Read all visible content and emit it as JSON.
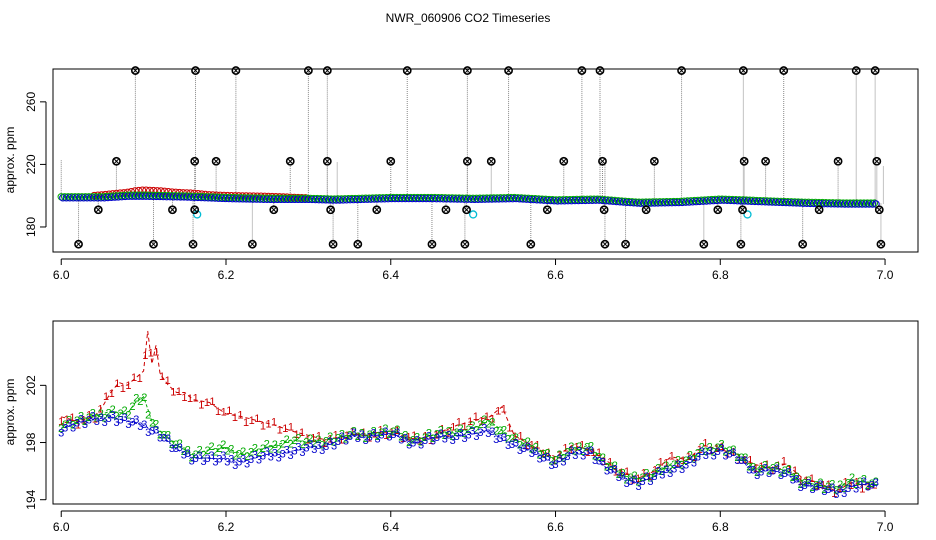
{
  "title": "NWR_060906  CO2 Timeseries",
  "colors": {
    "background": "#ffffff",
    "frame": "#000000",
    "series1": "#cc0000",
    "series2": "#00aa00",
    "series3": "#0000cc",
    "outlier": "#000000",
    "flag": "#00bcd4",
    "spike": "#888888"
  },
  "chart_data": [
    {
      "type": "scatter",
      "panel": "top",
      "xlabel": "",
      "ylabel": "approx. ppm",
      "xlim": [
        5.99,
        7.04
      ],
      "ylim": [
        164,
        281
      ],
      "xticks": [
        "6.0",
        "6.2",
        "6.4",
        "6.6",
        "6.8",
        "7.0"
      ],
      "xtick_values": [
        6.0,
        6.2,
        6.4,
        6.6,
        6.8,
        7.0
      ],
      "yticks": [
        "180",
        "220",
        "260"
      ],
      "ytick_values": [
        180,
        220,
        260
      ],
      "baseline": [
        [
          6.0,
          199
        ],
        [
          6.05,
          199
        ],
        [
          6.08,
          200
        ],
        [
          6.1,
          200
        ],
        [
          6.15,
          199.5
        ],
        [
          6.2,
          198.5
        ],
        [
          6.25,
          198
        ],
        [
          6.3,
          198
        ],
        [
          6.33,
          197.5
        ],
        [
          6.4,
          198.5
        ],
        [
          6.45,
          198.5
        ],
        [
          6.5,
          198
        ],
        [
          6.55,
          198.5
        ],
        [
          6.6,
          197
        ],
        [
          6.65,
          197.5
        ],
        [
          6.7,
          195.5
        ],
        [
          6.75,
          196
        ],
        [
          6.8,
          197.5
        ],
        [
          6.85,
          196.5
        ],
        [
          6.9,
          195.5
        ],
        [
          6.95,
          195
        ],
        [
          6.99,
          195
        ]
      ],
      "red_bump": [
        [
          6.04,
          200
        ],
        [
          6.06,
          201
        ],
        [
          6.08,
          202
        ],
        [
          6.09,
          203
        ],
        [
          6.1,
          203.5
        ],
        [
          6.12,
          203
        ],
        [
          6.14,
          202
        ],
        [
          6.16,
          201.5
        ],
        [
          6.18,
          200.5
        ],
        [
          6.2,
          200
        ],
        [
          6.25,
          199.5
        ],
        [
          6.3,
          198.5
        ]
      ],
      "outliers_high": [
        6.09,
        6.163,
        6.212,
        6.3,
        6.323,
        6.42,
        6.493,
        6.543,
        6.632,
        6.654,
        6.753,
        6.828,
        6.877,
        6.965,
        6.988
      ],
      "outliers_mid_upper": [
        6.067,
        6.162,
        6.188,
        6.278,
        6.323,
        6.4,
        6.493,
        6.522,
        6.61,
        6.657,
        6.72,
        6.829,
        6.855,
        6.943,
        6.99
      ],
      "outliers_mid_lower": [
        6.045,
        6.135,
        6.162,
        6.258,
        6.327,
        6.383,
        6.467,
        6.492,
        6.59,
        6.659,
        6.71,
        6.797,
        6.827,
        6.92,
        6.993
      ],
      "outliers_low": [
        6.021,
        6.112,
        6.16,
        6.232,
        6.33,
        6.36,
        6.45,
        6.49,
        6.57,
        6.66,
        6.685,
        6.78,
        6.825,
        6.9,
        6.995
      ],
      "outlier_values": {
        "high": 280,
        "mid_upper": 222,
        "mid_lower": 191,
        "low": 169
      },
      "flags": [
        [
          6.165,
          188
        ],
        [
          6.5,
          188
        ],
        [
          6.833,
          188
        ]
      ]
    },
    {
      "type": "line",
      "panel": "bottom",
      "xlabel": "",
      "ylabel": "approx. ppm",
      "xlim": [
        5.99,
        7.04
      ],
      "ylim": [
        193.7,
        206.5
      ],
      "xticks": [
        "6.0",
        "6.2",
        "6.4",
        "6.6",
        "6.8",
        "7.0"
      ],
      "xtick_values": [
        6.0,
        6.2,
        6.4,
        6.6,
        6.8,
        7.0
      ],
      "yticks": [
        "194",
        "198",
        "202"
      ],
      "ytick_values": [
        194,
        198,
        202
      ],
      "series": [
        {
          "name": "1",
          "points": [
            [
              6.0,
              199.8
            ],
            [
              6.02,
              199.5
            ],
            [
              6.04,
              199.8
            ],
            [
              6.05,
              200.5
            ],
            [
              6.06,
              201.5
            ],
            [
              6.07,
              202.2
            ],
            [
              6.08,
              202.0
            ],
            [
              6.09,
              202.5
            ],
            [
              6.1,
              203.0
            ],
            [
              6.105,
              205.8
            ],
            [
              6.11,
              203.5
            ],
            [
              6.115,
              204.8
            ],
            [
              6.12,
              202.8
            ],
            [
              6.13,
              202.0
            ],
            [
              6.14,
              201.5
            ],
            [
              6.15,
              201.5
            ],
            [
              6.16,
              201.0
            ],
            [
              6.18,
              200.8
            ],
            [
              6.2,
              200.0
            ],
            [
              6.22,
              199.8
            ],
            [
              6.24,
              199.5
            ],
            [
              6.26,
              199.2
            ],
            [
              6.28,
              198.8
            ],
            [
              6.3,
              198.5
            ],
            [
              6.32,
              198.2
            ],
            [
              6.35,
              198.5
            ],
            [
              6.4,
              198.8
            ],
            [
              6.43,
              198.2
            ],
            [
              6.45,
              198.5
            ],
            [
              6.48,
              199.2
            ],
            [
              6.5,
              199.5
            ],
            [
              6.52,
              199.8
            ],
            [
              6.535,
              200.5
            ],
            [
              6.55,
              198.5
            ],
            [
              6.58,
              197.5
            ],
            [
              6.6,
              197.0
            ],
            [
              6.62,
              197.8
            ],
            [
              6.64,
              197.5
            ],
            [
              6.66,
              196.8
            ],
            [
              6.68,
              196.0
            ],
            [
              6.7,
              195.5
            ],
            [
              6.72,
              196.0
            ],
            [
              6.74,
              197.0
            ],
            [
              6.76,
              196.8
            ],
            [
              6.78,
              197.8
            ],
            [
              6.8,
              197.5
            ],
            [
              6.82,
              197.2
            ],
            [
              6.84,
              196.5
            ],
            [
              6.86,
              196.2
            ],
            [
              6.88,
              196.5
            ],
            [
              6.9,
              195.5
            ],
            [
              6.92,
              195.2
            ],
            [
              6.94,
              194.6
            ],
            [
              6.96,
              195.2
            ],
            [
              6.98,
              195.0
            ],
            [
              6.99,
              194.8
            ]
          ]
        },
        {
          "name": "2",
          "points": [
            [
              6.0,
              199.3
            ],
            [
              6.02,
              199.6
            ],
            [
              6.04,
              199.8
            ],
            [
              6.06,
              200.2
            ],
            [
              6.08,
              200.0
            ],
            [
              6.09,
              200.8
            ],
            [
              6.1,
              201.2
            ],
            [
              6.11,
              199.5
            ],
            [
              6.12,
              198.8
            ],
            [
              6.14,
              197.8
            ],
            [
              6.16,
              197.2
            ],
            [
              6.18,
              197.5
            ],
            [
              6.2,
              197.6
            ],
            [
              6.22,
              197.2
            ],
            [
              6.24,
              197.5
            ],
            [
              6.26,
              197.8
            ],
            [
              6.28,
              198.2
            ],
            [
              6.3,
              198.0
            ],
            [
              6.32,
              198.2
            ],
            [
              6.35,
              198.5
            ],
            [
              6.4,
              198.8
            ],
            [
              6.43,
              198.2
            ],
            [
              6.45,
              198.5
            ],
            [
              6.48,
              198.8
            ],
            [
              6.5,
              199.0
            ],
            [
              6.52,
              199.5
            ],
            [
              6.55,
              198.2
            ],
            [
              6.58,
              197.5
            ],
            [
              6.6,
              196.8
            ],
            [
              6.62,
              197.5
            ],
            [
              6.64,
              197.8
            ],
            [
              6.66,
              196.6
            ],
            [
              6.68,
              195.8
            ],
            [
              6.7,
              195.5
            ],
            [
              6.72,
              195.8
            ],
            [
              6.74,
              196.5
            ],
            [
              6.76,
              196.8
            ],
            [
              6.78,
              197.5
            ],
            [
              6.8,
              197.8
            ],
            [
              6.82,
              197.2
            ],
            [
              6.84,
              196.2
            ],
            [
              6.86,
              196.3
            ],
            [
              6.88,
              196.0
            ],
            [
              6.9,
              195.3
            ],
            [
              6.92,
              195.0
            ],
            [
              6.94,
              194.8
            ],
            [
              6.96,
              195.4
            ],
            [
              6.98,
              195.2
            ],
            [
              6.99,
              195.0
            ]
          ]
        },
        {
          "name": "3",
          "points": [
            [
              6.0,
              199.0
            ],
            [
              6.02,
              199.4
            ],
            [
              6.04,
              199.6
            ],
            [
              6.06,
              199.8
            ],
            [
              6.08,
              199.5
            ],
            [
              6.1,
              199.2
            ],
            [
              6.12,
              198.6
            ],
            [
              6.14,
              197.5
            ],
            [
              6.16,
              197.0
            ],
            [
              6.18,
              196.9
            ],
            [
              6.2,
              196.8
            ],
            [
              6.22,
              196.7
            ],
            [
              6.24,
              197.0
            ],
            [
              6.26,
              197.2
            ],
            [
              6.28,
              197.4
            ],
            [
              6.3,
              197.6
            ],
            [
              6.32,
              197.8
            ],
            [
              6.35,
              198.4
            ],
            [
              6.4,
              198.6
            ],
            [
              6.43,
              198.0
            ],
            [
              6.45,
              198.3
            ],
            [
              6.48,
              198.5
            ],
            [
              6.5,
              198.6
            ],
            [
              6.52,
              198.8
            ],
            [
              6.55,
              197.8
            ],
            [
              6.58,
              197.2
            ],
            [
              6.6,
              196.5
            ],
            [
              6.62,
              197.2
            ],
            [
              6.64,
              197.5
            ],
            [
              6.66,
              196.3
            ],
            [
              6.68,
              195.6
            ],
            [
              6.7,
              195.2
            ],
            [
              6.72,
              195.6
            ],
            [
              6.74,
              196.2
            ],
            [
              6.76,
              196.5
            ],
            [
              6.78,
              197.2
            ],
            [
              6.8,
              197.5
            ],
            [
              6.82,
              197.0
            ],
            [
              6.84,
              196.0
            ],
            [
              6.86,
              196.1
            ],
            [
              6.88,
              195.8
            ],
            [
              6.9,
              195.1
            ],
            [
              6.92,
              194.9
            ],
            [
              6.94,
              194.5
            ],
            [
              6.96,
              195.0
            ],
            [
              6.98,
              195.1
            ],
            [
              6.99,
              194.9
            ]
          ]
        }
      ]
    }
  ]
}
